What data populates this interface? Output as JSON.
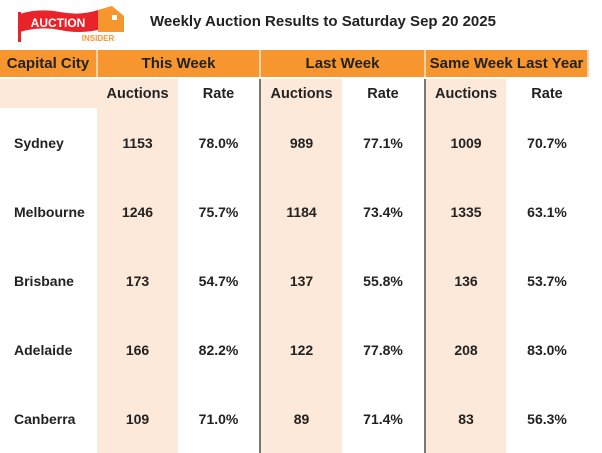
{
  "logo": {
    "text": "AUCTION",
    "subtext": "INSIDER"
  },
  "title": "Weekly Auction Results to Saturday Sep 20 2025",
  "headers": {
    "city": "Capital City",
    "this_week": "This Week",
    "last_week": "Last Week",
    "last_year": "Same Week Last Year"
  },
  "sub": {
    "auctions": "Auctions",
    "rate": "Rate"
  },
  "rows": [
    {
      "city": "Sydney",
      "tw_a": "1153",
      "tw_r": "78.0%",
      "lw_a": "989",
      "lw_r": "77.1%",
      "ly_a": "1009",
      "ly_r": "70.7%"
    },
    {
      "city": "Melbourne",
      "tw_a": "1246",
      "tw_r": "75.7%",
      "lw_a": "1184",
      "lw_r": "73.4%",
      "ly_a": "1335",
      "ly_r": "63.1%"
    },
    {
      "city": "Brisbane",
      "tw_a": "173",
      "tw_r": "54.7%",
      "lw_a": "137",
      "lw_r": "55.8%",
      "ly_a": "136",
      "ly_r": "53.7%"
    },
    {
      "city": "Adelaide",
      "tw_a": "166",
      "tw_r": "82.2%",
      "lw_a": "122",
      "lw_r": "77.8%",
      "ly_a": "208",
      "ly_r": "83.0%"
    },
    {
      "city": "Canberra",
      "tw_a": "109",
      "tw_r": "71.0%",
      "lw_a": "89",
      "lw_r": "71.4%",
      "ly_a": "83",
      "ly_r": "56.3%"
    }
  ]
}
